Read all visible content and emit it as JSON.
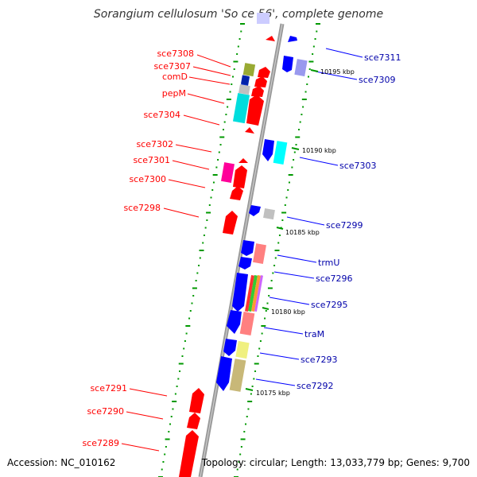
{
  "title": "Sorangium cellulosum 'So ce 56', complete genome",
  "footer": {
    "accession": "Accession: NC_010162",
    "summary": "Topology: circular; Length: 13,033,779 bp; Genes: 9,700"
  },
  "colors": {
    "forward_strand": "#ff0000",
    "reverse_strand": "#0000ff",
    "backbone": "#999999",
    "tick_marks": "#009900",
    "cyan": "#00ffff",
    "pink": "#ff8080",
    "magenta": "#ff0099",
    "olive": "#99aa33",
    "khaki": "#c8b878",
    "yellow": "#f0f080",
    "lavender": "#aaaaff",
    "light_grey": "#c0c0c0"
  },
  "scale_labels": [
    "10195 kbp",
    "10190 kbp",
    "10185 kbp",
    "10180 kbp",
    "10175 kbp"
  ],
  "left_gene_labels": [
    "sce7308",
    "sce7307",
    "comD",
    "pepM",
    "sce7304",
    "sce7302",
    "sce7301",
    "sce7300",
    "sce7298",
    "sce7291",
    "sce7290",
    "sce7289"
  ],
  "right_gene_labels": [
    "sce7311",
    "sce7309",
    "sce7303",
    "sce7299",
    "trmU",
    "sce7296",
    "sce7295",
    "traM",
    "sce7293",
    "sce7292"
  ]
}
